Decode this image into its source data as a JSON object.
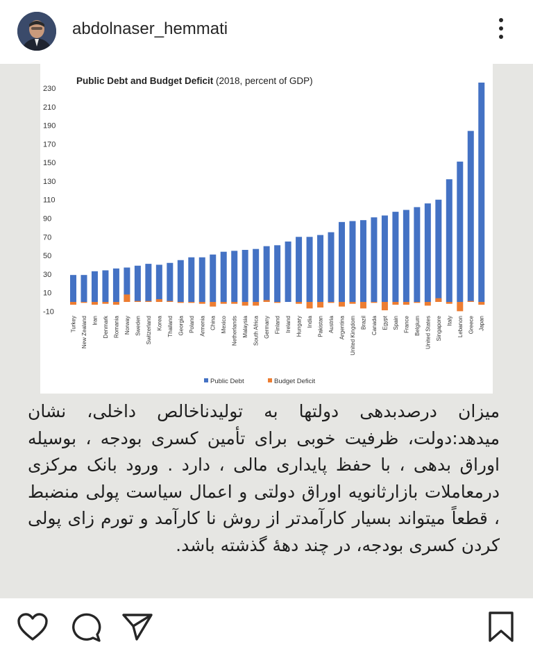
{
  "header": {
    "username": "abdolnaser_hemmati",
    "avatar_icon": "profile-photo",
    "more_icon": "more-vertical-icon"
  },
  "chart_data": {
    "type": "bar",
    "title_bold": "Public Debt and Budget Deficit",
    "title_rest": " (2018, percent of GDP)",
    "categories": [
      "Turkey",
      "New Zealand",
      "Iran",
      "Denmark",
      "Romania",
      "Norway",
      "Sweden",
      "Switzerland",
      "Korea",
      "Thailand",
      "Georgia",
      "Poland",
      "Armenia",
      "China",
      "Mexico",
      "Netherlands",
      "Malaysia",
      "South Africa",
      "Germany",
      "Finland",
      "Ireland",
      "Hungary",
      "India",
      "Pakistan",
      "Austria",
      "Argentina",
      "United Kingdom",
      "Brazil",
      "Canada",
      "Egypt",
      "Spain",
      "France",
      "Belgium",
      "United States",
      "Singapore",
      "Italy",
      "Lebanon",
      "Greece",
      "Japan"
    ],
    "series": [
      {
        "name": "Public Debt",
        "color": "#4472c4",
        "values": [
          29,
          29,
          33,
          34,
          36,
          37,
          39,
          41,
          40,
          42,
          45,
          48,
          48,
          51,
          54,
          55,
          56,
          57,
          60,
          61,
          65,
          70,
          70,
          72,
          75,
          86,
          87,
          88,
          91,
          93,
          97,
          99,
          102,
          106,
          110,
          132,
          151,
          184,
          236
        ]
      },
      {
        "name": "Budget Deficit",
        "color": "#ed7d31",
        "values": [
          -3,
          -1,
          -3,
          -2,
          -3,
          8,
          1,
          1,
          3,
          1,
          -1,
          -1,
          -2,
          -5,
          -2,
          -2,
          -4,
          -4,
          2,
          -1,
          0,
          -2,
          -7,
          -6,
          -1,
          -5,
          -2,
          -7,
          -1,
          -9,
          -3,
          -3,
          -1,
          -4,
          4,
          -2,
          -10,
          1,
          -3
        ]
      }
    ],
    "yticks": [
      230,
      210,
      190,
      170,
      150,
      130,
      110,
      90,
      70,
      50,
      30,
      10,
      -10
    ],
    "ylim": [
      -10,
      236
    ],
    "legend_position": "bottom"
  },
  "caption": "میزان درصدبدهی دولتها به تولیدناخالص داخلی، نشان میدهد:دولت، ظرفیت خوبی برای تأمین کسری بودجه ، بوسیله اوراق بدهی ، با حفظ پایداری مالی ، دارد . ورود بانک مرکزی درمعاملات بازارثانویه اوراق دولتی و اعمال سیاست پولی منضبط ، قطعاً میتواند بسیار کارآمدتر از روش نا کارآمد و تورم زای پولی کردن کسری بودجه، در چند دههٔ گذشته باشد.",
  "actions": {
    "like_icon": "heart-icon",
    "comment_icon": "comment-icon",
    "share_icon": "send-icon",
    "save_icon": "bookmark-icon"
  }
}
